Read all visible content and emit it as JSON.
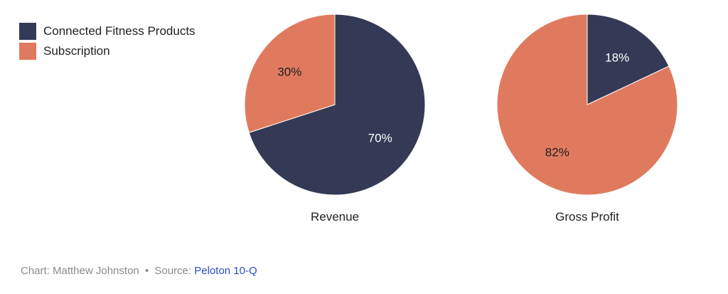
{
  "legend": [
    {
      "label": "Connected Fitness Products",
      "color": "#343a55"
    },
    {
      "label": "Subscription",
      "color": "#e07a5f"
    }
  ],
  "chart_data": [
    {
      "type": "pie",
      "title": "Revenue",
      "slices": [
        {
          "label": "Connected Fitness Products",
          "value": 70,
          "display": "70%",
          "color": "#343a55"
        },
        {
          "label": "Subscription",
          "value": 30,
          "display": "30%",
          "color": "#e07a5f"
        }
      ]
    },
    {
      "type": "pie",
      "title": "Gross Profit",
      "slices": [
        {
          "label": "Connected Fitness Products",
          "value": 18,
          "display": "18%",
          "color": "#343a55"
        },
        {
          "label": "Subscription",
          "value": 82,
          "display": "82%",
          "color": "#e07a5f"
        }
      ]
    }
  ],
  "footer": {
    "credit": "Chart: Matthew Johnston",
    "separator": "•",
    "source_label": "Source:",
    "source_link": "Peloton 10-Q"
  }
}
